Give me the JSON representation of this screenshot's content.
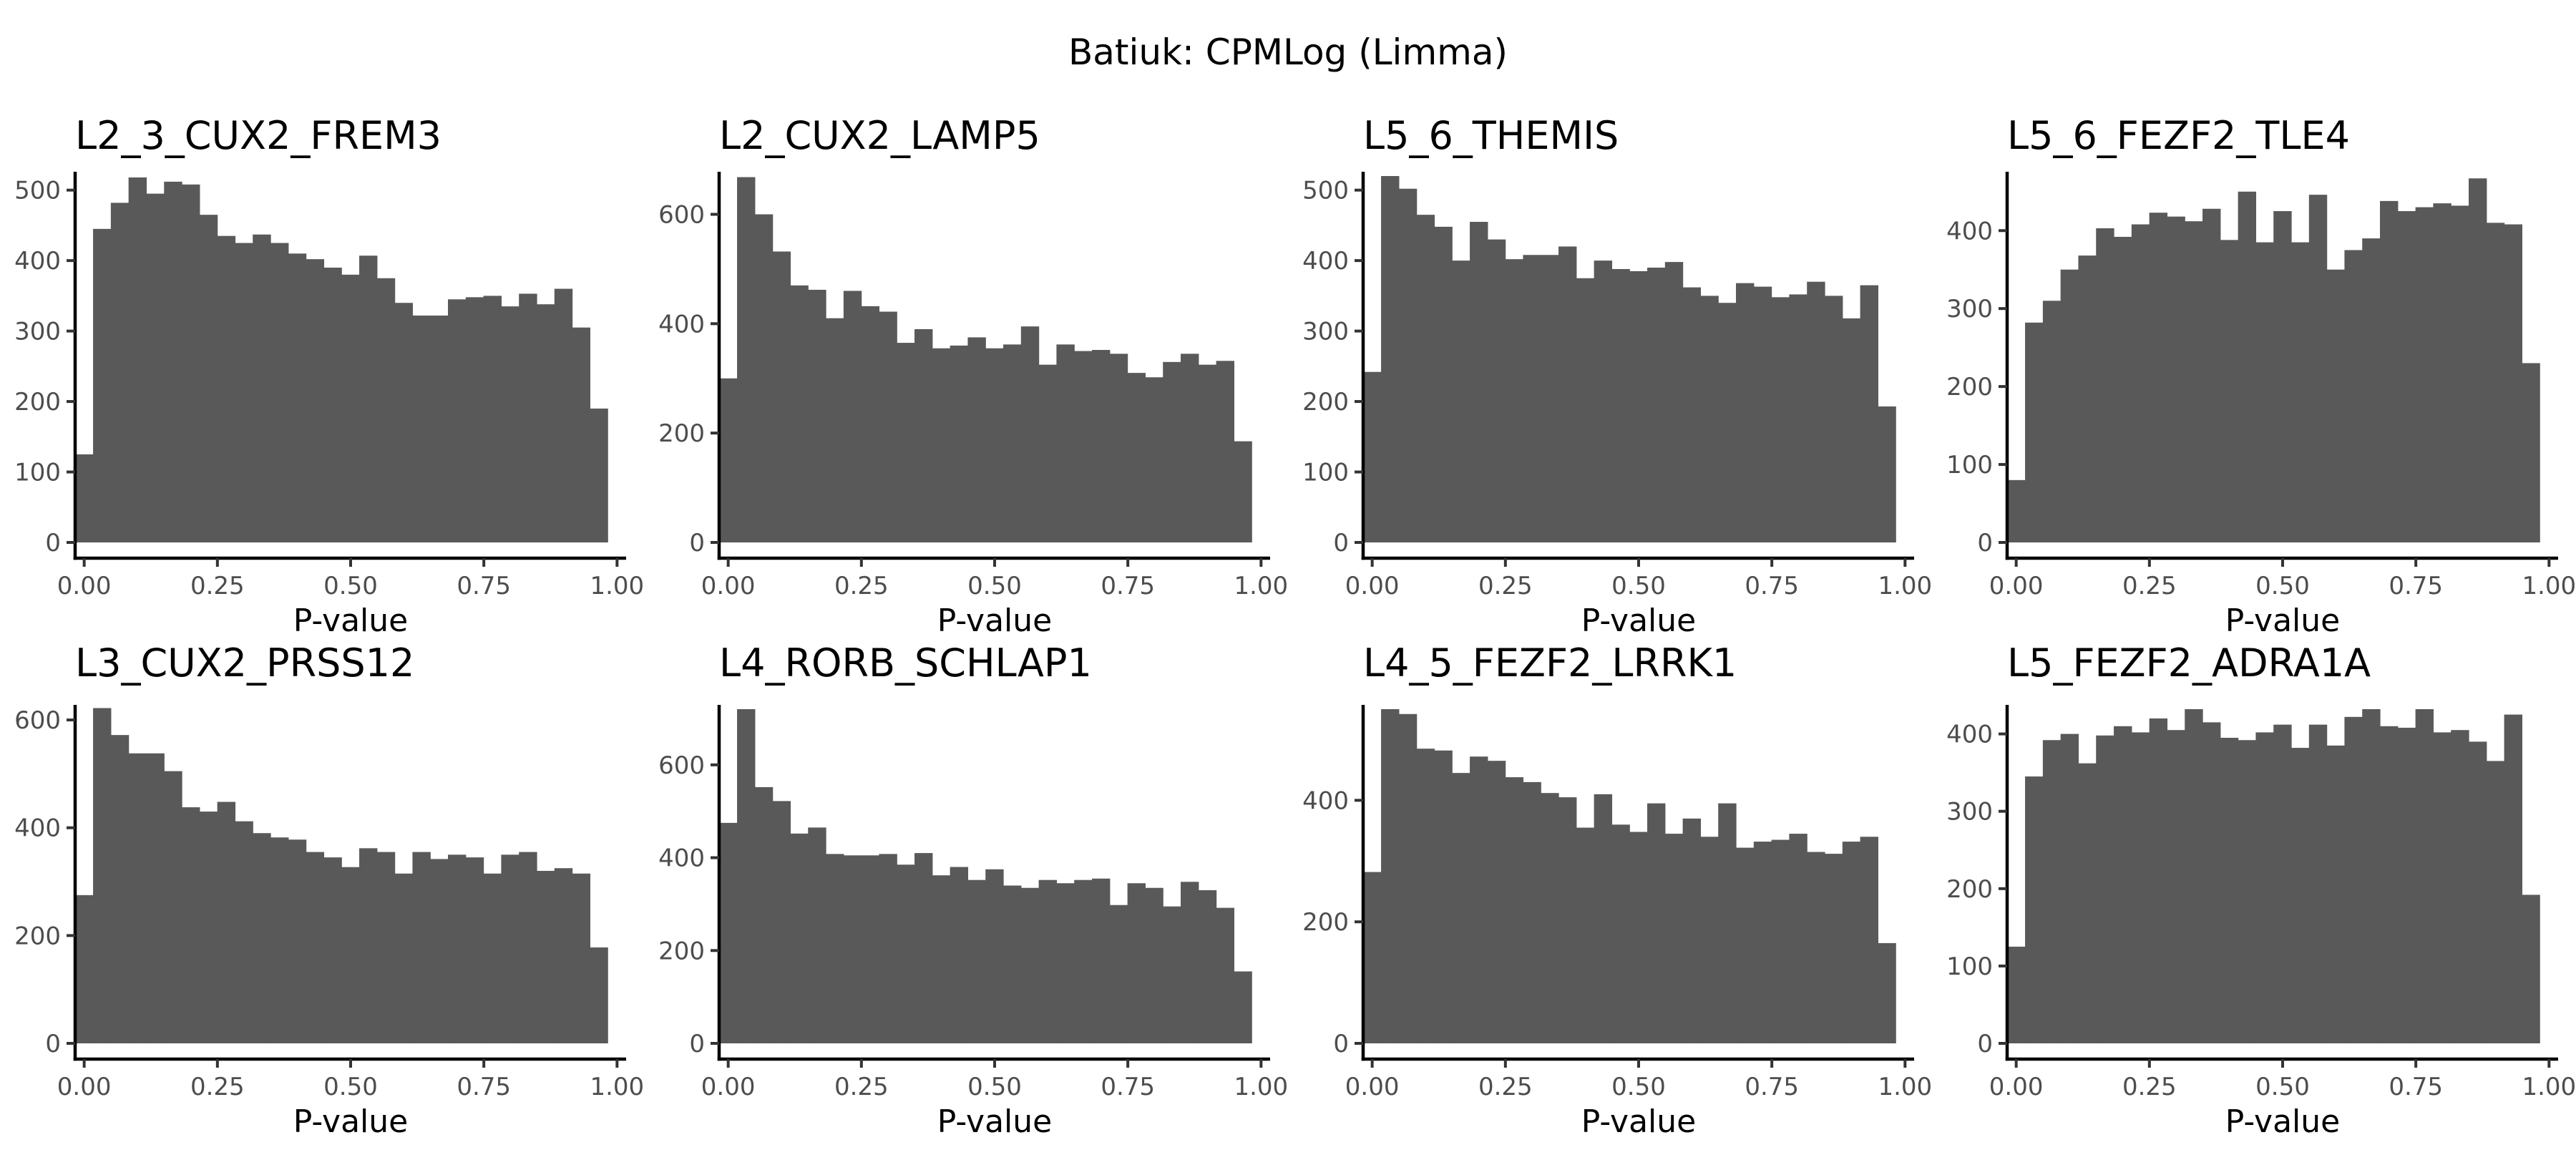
{
  "figure": {
    "title": "Batiuk: CPMLog (Limma)"
  },
  "style": {
    "bar_color": "#595959",
    "background": "#ffffff"
  },
  "chart_data": [
    {
      "type": "bar",
      "title": "L2_3_CUX2_FREM3",
      "xlabel": "P-value",
      "ylabel": "",
      "xlim": [
        -0.017,
        1.017
      ],
      "ylim": [
        0,
        520
      ],
      "xticks": [
        "0.00",
        "0.25",
        "0.50",
        "0.75",
        "1.00"
      ],
      "yticks": [
        "0",
        "100",
        "200",
        "300",
        "400",
        "500"
      ],
      "bin_width": 0.0333,
      "values": [
        125,
        445,
        482,
        518,
        495,
        512,
        508,
        465,
        435,
        425,
        437,
        425,
        410,
        402,
        390,
        380,
        407,
        375,
        340,
        322,
        322,
        345,
        348,
        350,
        335,
        353,
        338,
        360,
        305,
        190
      ]
    },
    {
      "type": "bar",
      "title": "L2_CUX2_LAMP5",
      "xlabel": "P-value",
      "ylabel": "",
      "xlim": [
        -0.017,
        1.017
      ],
      "ylim": [
        0,
        670
      ],
      "xticks": [
        "0.00",
        "0.25",
        "0.50",
        "0.75",
        "1.00"
      ],
      "yticks": [
        "0",
        "200",
        "400",
        "600"
      ],
      "bin_width": 0.0333,
      "values": [
        300,
        668,
        600,
        532,
        470,
        462,
        410,
        460,
        432,
        422,
        365,
        390,
        355,
        360,
        375,
        355,
        362,
        395,
        325,
        362,
        350,
        352,
        345,
        310,
        302,
        330,
        345,
        325,
        332,
        185
      ]
    },
    {
      "type": "bar",
      "title": "L5_6_THEMIS",
      "xlabel": "P-value",
      "ylabel": "",
      "xlim": [
        -0.017,
        1.017
      ],
      "ylim": [
        0,
        520
      ],
      "xticks": [
        "0.00",
        "0.25",
        "0.50",
        "0.75",
        "1.00"
      ],
      "yticks": [
        "0",
        "100",
        "200",
        "300",
        "400",
        "500"
      ],
      "bin_width": 0.0333,
      "values": [
        242,
        520,
        502,
        465,
        448,
        400,
        455,
        430,
        402,
        408,
        408,
        420,
        375,
        400,
        388,
        385,
        390,
        398,
        362,
        350,
        340,
        368,
        363,
        348,
        352,
        370,
        350,
        318,
        365,
        193
      ]
    },
    {
      "type": "bar",
      "title": "L5_6_FEZF2_TLE4",
      "xlabel": "P-value",
      "ylabel": "",
      "xlim": [
        -0.017,
        1.017
      ],
      "ylim": [
        0,
        470
      ],
      "xticks": [
        "0.00",
        "0.25",
        "0.50",
        "0.75",
        "1.00"
      ],
      "yticks": [
        "0",
        "100",
        "200",
        "300",
        "400"
      ],
      "bin_width": 0.0333,
      "values": [
        80,
        282,
        310,
        350,
        368,
        403,
        392,
        408,
        423,
        418,
        412,
        428,
        388,
        450,
        385,
        425,
        385,
        446,
        350,
        375,
        390,
        438,
        425,
        430,
        435,
        432,
        467,
        410,
        408,
        230
      ]
    },
    {
      "type": "bar",
      "title": "L3_CUX2_PRSS12",
      "xlabel": "P-value",
      "ylabel": "",
      "xlim": [
        -0.017,
        1.017
      ],
      "ylim": [
        0,
        620
      ],
      "xticks": [
        "0.00",
        "0.25",
        "0.50",
        "0.75",
        "1.00"
      ],
      "yticks": [
        "0",
        "200",
        "400",
        "600"
      ],
      "bin_width": 0.0333,
      "values": [
        275,
        622,
        572,
        538,
        538,
        505,
        438,
        430,
        448,
        412,
        390,
        382,
        378,
        355,
        345,
        327,
        362,
        355,
        315,
        355,
        342,
        350,
        345,
        315,
        350,
        355,
        320,
        325,
        315,
        178
      ]
    },
    {
      "type": "bar",
      "title": "L4_RORB_SCHLAP1",
      "xlabel": "P-value",
      "ylabel": "",
      "xlim": [
        -0.017,
        1.017
      ],
      "ylim": [
        0,
        720
      ],
      "xticks": [
        "0.00",
        "0.25",
        "0.50",
        "0.75",
        "1.00"
      ],
      "yticks": [
        "0",
        "200",
        "400",
        "600"
      ],
      "bin_width": 0.0333,
      "values": [
        475,
        720,
        552,
        522,
        452,
        465,
        408,
        405,
        405,
        408,
        385,
        410,
        362,
        380,
        352,
        375,
        340,
        335,
        352,
        345,
        352,
        355,
        298,
        345,
        335,
        295,
        348,
        330,
        292,
        155
      ]
    },
    {
      "type": "bar",
      "title": "L4_5_FEZF2_LRRK1",
      "xlabel": "P-value",
      "ylabel": "",
      "xlim": [
        -0.017,
        1.017
      ],
      "ylim": [
        0,
        550
      ],
      "xticks": [
        "0.00",
        "0.25",
        "0.50",
        "0.75",
        "1.00"
      ],
      "yticks": [
        "0",
        "200",
        "400"
      ],
      "bin_width": 0.0333,
      "values": [
        282,
        550,
        542,
        485,
        482,
        445,
        472,
        465,
        438,
        430,
        412,
        405,
        355,
        410,
        360,
        348,
        395,
        345,
        370,
        340,
        395,
        322,
        332,
        335,
        345,
        315,
        312,
        332,
        340,
        165
      ]
    },
    {
      "type": "bar",
      "title": "L5_FEZF2_ADRA1A",
      "xlabel": "P-value",
      "ylabel": "",
      "xlim": [
        -0.017,
        1.017
      ],
      "ylim": [
        0,
        432
      ],
      "xticks": [
        "0.00",
        "0.25",
        "0.50",
        "0.75",
        "1.00"
      ],
      "yticks": [
        "0",
        "100",
        "200",
        "300",
        "400"
      ],
      "bin_width": 0.0333,
      "values": [
        125,
        345,
        392,
        400,
        362,
        398,
        410,
        402,
        420,
        405,
        432,
        415,
        395,
        392,
        402,
        412,
        382,
        412,
        385,
        422,
        432,
        410,
        408,
        432,
        402,
        405,
        390,
        365,
        425,
        192
      ]
    }
  ]
}
